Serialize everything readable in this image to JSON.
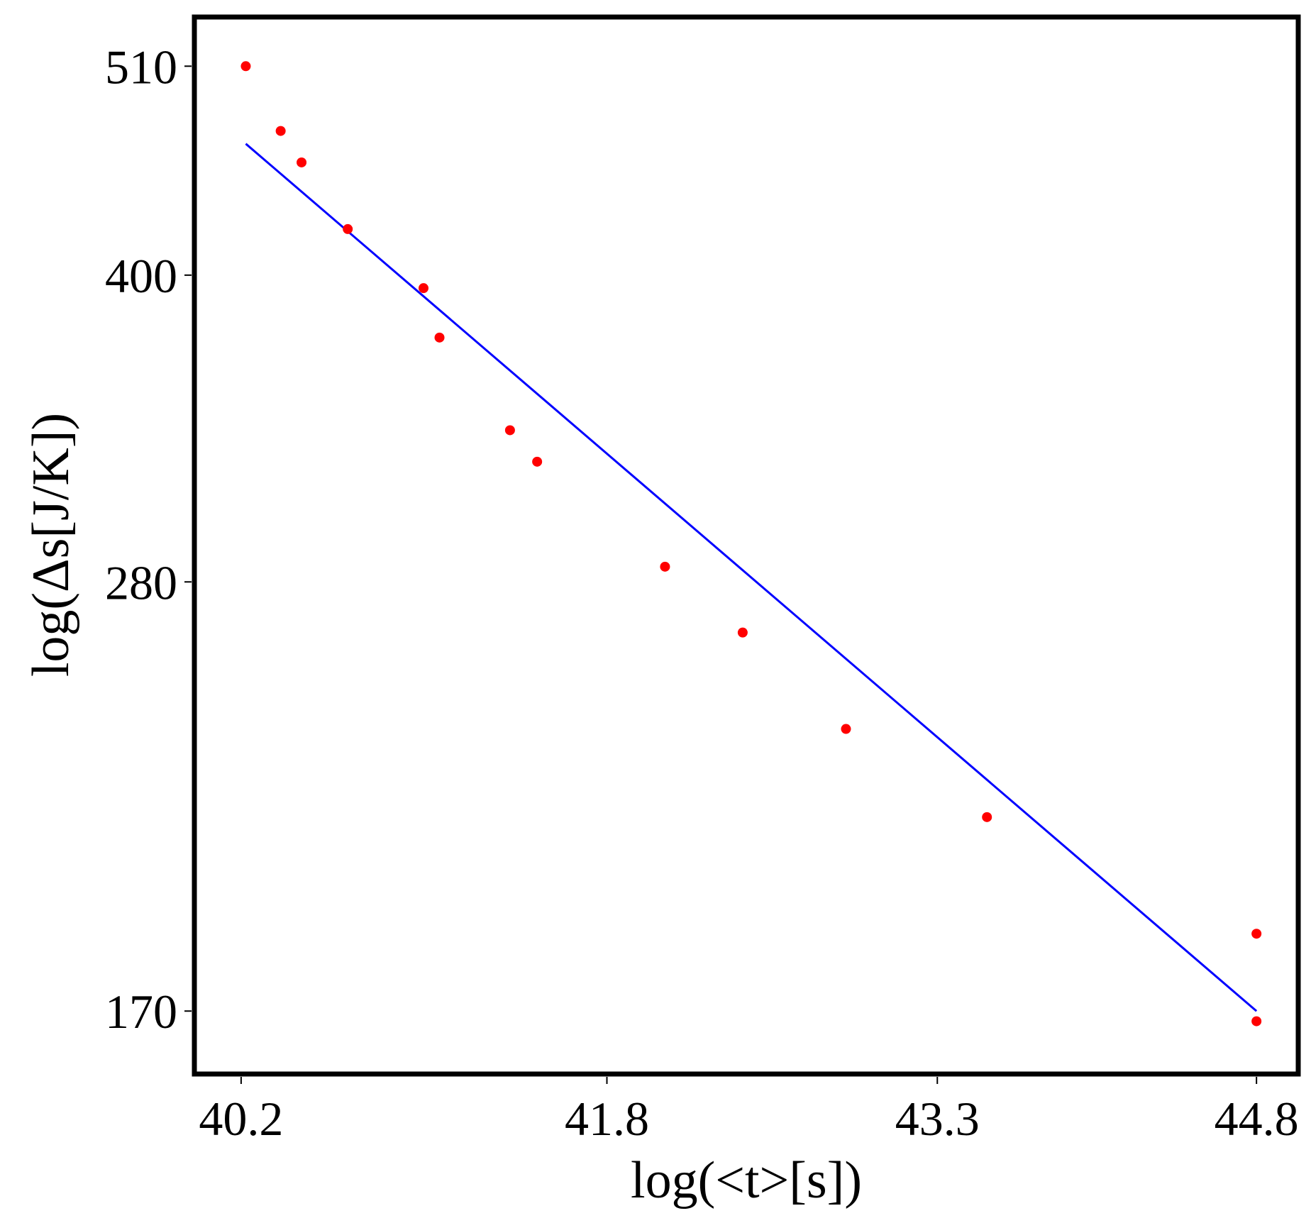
{
  "chart_data": {
    "type": "scatter",
    "title": "",
    "xlabel": "log(<t>[s])",
    "ylabel": "log(Δs[J/K])",
    "xscale": "log",
    "yscale": "log",
    "xlim": [
      40.0,
      45.0
    ],
    "ylim": [
      158,
      540
    ],
    "x_ticks": [
      40.2,
      41.8,
      43.3,
      44.8
    ],
    "x_tick_labels": [
      "40.2",
      "41.8",
      "43.3",
      "44.8"
    ],
    "y_ticks": [
      170,
      280,
      400,
      510
    ],
    "y_tick_labels": [
      "170",
      "280",
      "400",
      "510"
    ],
    "grid": false,
    "legend": "none",
    "series": [
      {
        "kind": "points",
        "color": "#ff0000",
        "points": [
          {
            "x": 40.22,
            "y": 510
          },
          {
            "x": 40.37,
            "y": 473
          },
          {
            "x": 40.46,
            "y": 456
          },
          {
            "x": 40.66,
            "y": 422
          },
          {
            "x": 40.99,
            "y": 394
          },
          {
            "x": 41.06,
            "y": 372
          },
          {
            "x": 41.37,
            "y": 334
          },
          {
            "x": 41.49,
            "y": 322
          },
          {
            "x": 42.06,
            "y": 285
          },
          {
            "x": 42.41,
            "y": 264
          },
          {
            "x": 42.88,
            "y": 236
          },
          {
            "x": 43.53,
            "y": 213
          },
          {
            "x": 44.8,
            "y": 186
          },
          {
            "x": 44.8,
            "y": 168
          }
        ]
      },
      {
        "kind": "line",
        "color": "#0000ff",
        "points": [
          {
            "x": 40.22,
            "y": 466
          },
          {
            "x": 44.8,
            "y": 170
          }
        ]
      }
    ]
  }
}
